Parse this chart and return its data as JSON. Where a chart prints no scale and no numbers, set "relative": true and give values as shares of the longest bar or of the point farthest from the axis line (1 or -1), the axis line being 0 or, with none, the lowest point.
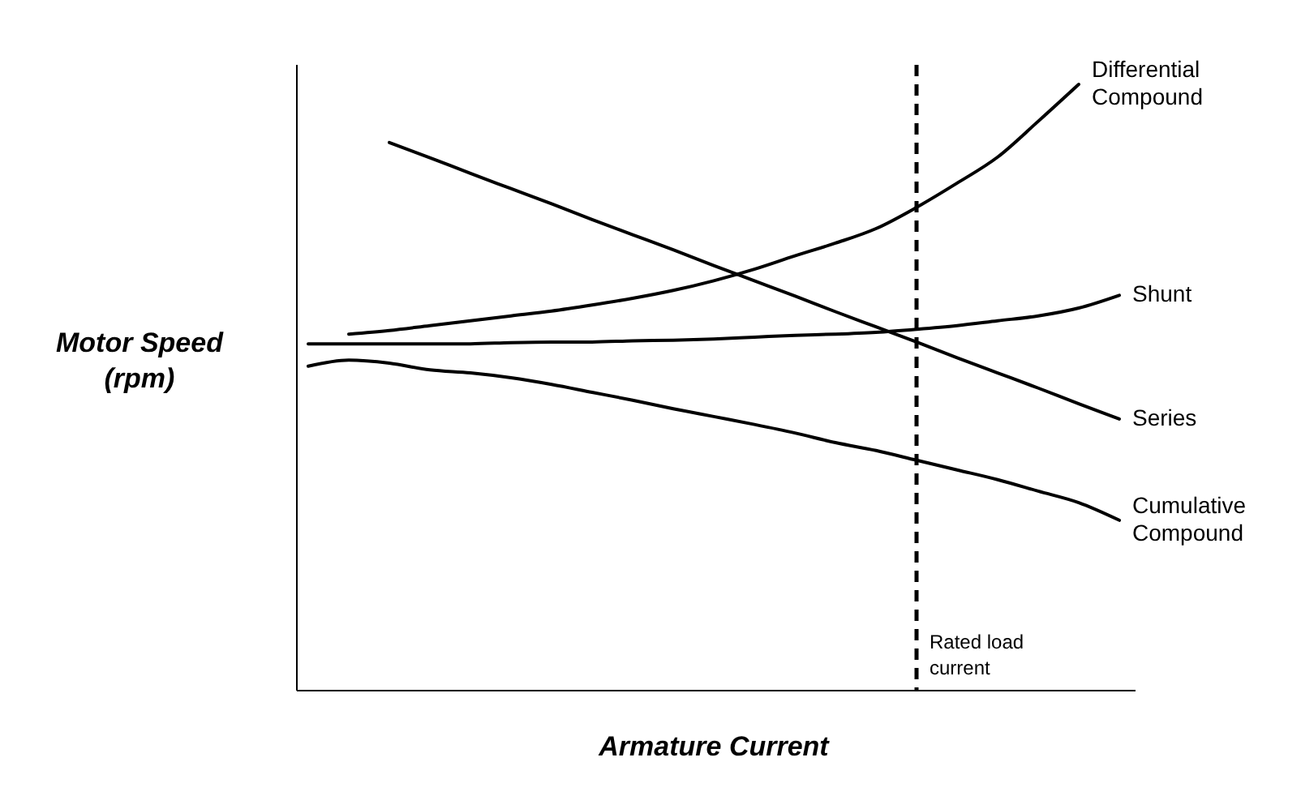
{
  "chart_data": {
    "type": "line",
    "relative": true,
    "xlabel": "Armature Current",
    "ylabel": "Motor Speed (rpm)",
    "categories": [
      null,
      null,
      null,
      null,
      null,
      null,
      null,
      null,
      null,
      null,
      null,
      null,
      null,
      null,
      null,
      null,
      null,
      null,
      null,
      null,
      null
    ],
    "series": [
      {
        "name": "Differential Compound",
        "color": "#000000",
        "values": [
          null,
          0.588,
          0.594,
          0.602,
          0.61,
          0.618,
          0.626,
          0.636,
          0.647,
          0.66,
          0.676,
          0.695,
          0.717,
          0.738,
          0.762,
          0.797,
          0.837,
          0.88,
          0.939,
          1.0,
          null
        ]
      },
      {
        "name": "Shunt",
        "color": "#000000",
        "values": [
          0.572,
          0.572,
          0.572,
          0.572,
          0.572,
          0.574,
          0.575,
          0.575,
          0.577,
          0.578,
          0.58,
          0.583,
          0.586,
          0.588,
          0.591,
          0.596,
          0.602,
          0.61,
          0.618,
          0.631,
          0.652
        ]
      },
      {
        "name": "Series",
        "color": "#000000",
        "values": [
          null,
          null,
          0.904,
          0.879,
          0.853,
          0.828,
          0.803,
          0.777,
          0.752,
          0.727,
          0.701,
          0.676,
          0.651,
          0.625,
          0.6,
          0.575,
          0.549,
          0.524,
          0.499,
          0.473,
          0.448
        ]
      },
      {
        "name": "Cumulative Compound",
        "color": "#000000",
        "values": [
          0.535,
          0.545,
          0.54,
          0.529,
          0.524,
          0.516,
          0.505,
          0.492,
          0.479,
          0.465,
          0.452,
          0.439,
          0.425,
          0.409,
          0.396,
          0.38,
          0.364,
          0.348,
          0.329,
          0.31,
          0.281
        ]
      }
    ],
    "annotations": [
      "Rated load current"
    ],
    "marker": "none",
    "line_style": "solid"
  }
}
